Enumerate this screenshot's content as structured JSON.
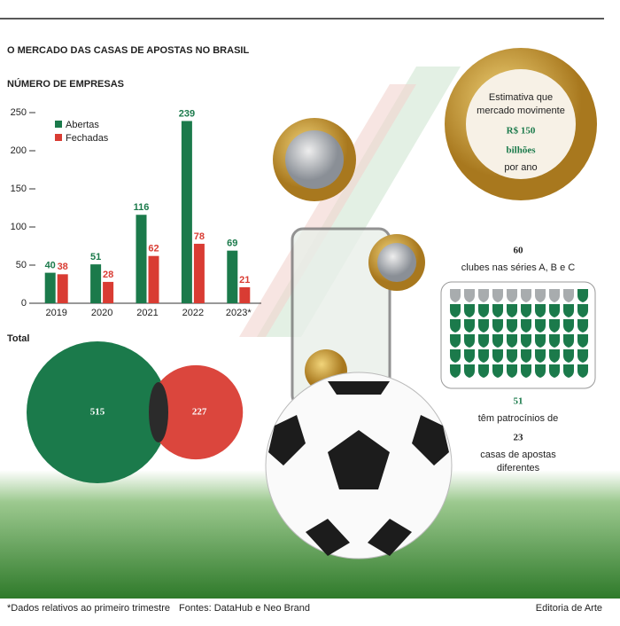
{
  "title": "O MERCADO DAS CASAS DE APOSTAS NO BRASIL",
  "chart_data": {
    "type": "bar",
    "title": "NÚMERO DE EMPRESAS",
    "categories": [
      "2019",
      "2020",
      "2021",
      "2022",
      "2023*"
    ],
    "series": [
      {
        "name": "Abertas",
        "color": "#1b7a4b",
        "values": [
          40,
          51,
          116,
          239,
          69
        ]
      },
      {
        "name": "Fechadas",
        "color": "#d93c33",
        "values": [
          38,
          28,
          62,
          78,
          21
        ]
      }
    ],
    "ylim": [
      0,
      250
    ],
    "yticks": [
      0,
      50,
      100,
      150,
      200,
      250
    ],
    "grid": false,
    "legend": "upper left"
  },
  "totals": {
    "label": "Total",
    "abertas": 515,
    "fechadas": 227
  },
  "market": {
    "text1": "Estimativa que",
    "text2": "mercado movimente",
    "value": "R$ 150",
    "unit": "bilhões",
    "period": "por ano"
  },
  "clubs": {
    "total": 60,
    "total_label": "clubes nas séries A, B e C",
    "sponsored": 51,
    "sponsored_label": "têm patrocínios de",
    "houses": 23,
    "houses_label1": "casas de apostas",
    "houses_label2": "diferentes"
  },
  "footnote": "*Dados relativos ao primeiro trimestre",
  "source": "Fontes: DataHub e Neo Brand",
  "credit": "Editoria de Arte"
}
